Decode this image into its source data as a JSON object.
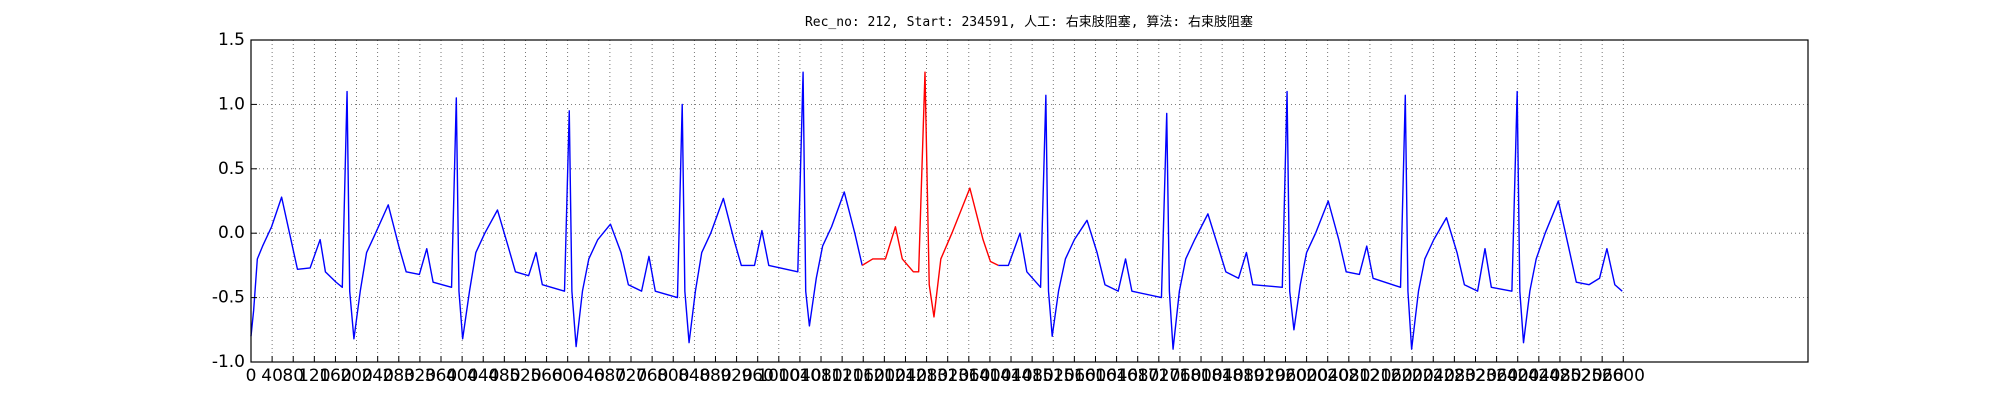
{
  "chart_data": {
    "type": "line",
    "title": "Rec_no: 212, Start: 234591, 人工: 右束肢阻塞, 算法: 右束肢阻塞",
    "xlim": [
      0,
      2950
    ],
    "ylim": [
      -1.0,
      1.5
    ],
    "xticks": [
      0,
      40,
      80,
      120,
      160,
      200,
      240,
      280,
      320,
      360,
      400,
      440,
      480,
      520,
      560,
      600,
      640,
      680,
      720,
      760,
      800,
      840,
      880,
      920,
      960,
      1000,
      1040,
      1080,
      1120,
      1160,
      1200,
      1240,
      1280,
      1320,
      1360,
      1400,
      1440,
      1480,
      1520,
      1560,
      1600,
      1640,
      1680,
      1720,
      1760,
      1800,
      1840,
      1880,
      1920,
      1960,
      2000,
      2040,
      2080,
      2120,
      2160,
      2200,
      2240,
      2280,
      2320,
      2360,
      2400,
      2440,
      2480,
      2520,
      2560,
      2600
    ],
    "yticks": [
      {
        "value": -1.0,
        "label": "-1.0"
      },
      {
        "value": -0.5,
        "label": "-0.5"
      },
      {
        "value": 0.0,
        "label": "0.0"
      },
      {
        "value": 0.5,
        "label": "0.5"
      },
      {
        "value": 1.0,
        "label": "1.0"
      },
      {
        "value": 1.5,
        "label": "1.5"
      }
    ],
    "grid": true,
    "series": [
      {
        "color": "#0000ff",
        "x": [
          0,
          5,
          12,
          22,
          39,
          58,
          73,
          88,
          112,
          131,
          141,
          161,
          173,
          182,
          187,
          195,
          207,
          219,
          236,
          260,
          280,
          294,
          319,
          333,
          345,
          380,
          389,
          394,
          401,
          414,
          426,
          443,
          467,
          487,
          501,
          526,
          540,
          552,
          594,
          603,
          608,
          616,
          628,
          640,
          657,
          681,
          701,
          715,
          740,
          754,
          766,
          808,
          817,
          822,
          830,
          842,
          854,
          871,
          895,
          915,
          929,
          954,
          968,
          981,
          1036,
          1046,
          1051,
          1058,
          1071,
          1083,
          1100,
          1124,
          1144,
          1158
        ],
        "values": [
          -0.8,
          -0.6,
          -0.2,
          -0.1,
          0.05,
          0.28,
          0.0,
          -0.28,
          -0.27,
          -0.05,
          -0.3,
          -0.38,
          -0.42,
          1.1,
          -0.45,
          -0.82,
          -0.45,
          -0.15,
          0.0,
          0.22,
          -0.1,
          -0.3,
          -0.32,
          -0.12,
          -0.38,
          -0.42,
          1.05,
          -0.45,
          -0.82,
          -0.45,
          -0.15,
          0.0,
          0.18,
          -0.1,
          -0.3,
          -0.33,
          -0.15,
          -0.4,
          -0.45,
          0.95,
          -0.45,
          -0.88,
          -0.45,
          -0.2,
          -0.05,
          0.07,
          -0.15,
          -0.4,
          -0.45,
          -0.18,
          -0.45,
          -0.5,
          1.0,
          -0.45,
          -0.85,
          -0.45,
          -0.15,
          0.0,
          0.27,
          -0.05,
          -0.25,
          -0.25,
          0.02,
          -0.25,
          -0.3,
          1.25,
          -0.45,
          -0.72,
          -0.35,
          -0.1,
          0.05,
          0.32,
          0.0,
          -0.25
        ]
      },
      {
        "color": "#ff0000",
        "x": [
          1158,
          1178,
          1202,
          1221,
          1234,
          1255,
          1265,
          1277,
          1285,
          1294,
          1307,
          1328,
          1362,
          1387,
          1401,
          1416
        ],
        "values": [
          -0.25,
          -0.2,
          -0.2,
          0.05,
          -0.2,
          -0.3,
          -0.3,
          1.25,
          -0.4,
          -0.65,
          -0.2,
          0.0,
          0.35,
          -0.05,
          -0.22,
          -0.25
        ]
      },
      {
        "color": "#0000ff",
        "x": [
          1416,
          1435,
          1457,
          1470,
          1496,
          1506,
          1511,
          1518,
          1530,
          1543,
          1560,
          1584,
          1603,
          1618,
          1643,
          1657,
          1669,
          1725,
          1735,
          1740,
          1747,
          1759,
          1771,
          1788,
          1813,
          1832,
          1847,
          1871,
          1886,
          1898,
          1954,
          1963,
          1968,
          1976,
          1988,
          2000,
          2017,
          2041,
          2061,
          2075,
          2100,
          2114,
          2126,
          2178,
          2187,
          2192,
          2199,
          2212,
          2224,
          2241,
          2265,
          2285,
          2299,
          2324,
          2338,
          2350,
          2389,
          2399,
          2404,
          2411,
          2423,
          2435,
          2452,
          2477,
          2496,
          2511,
          2535,
          2555,
          2569,
          2584,
          2598
        ],
        "values": [
          -0.25,
          -0.25,
          0.0,
          -0.3,
          -0.42,
          1.07,
          -0.45,
          -0.8,
          -0.45,
          -0.2,
          -0.05,
          0.1,
          -0.15,
          -0.4,
          -0.45,
          -0.2,
          -0.45,
          -0.5,
          0.93,
          -0.45,
          -0.9,
          -0.45,
          -0.2,
          -0.05,
          0.15,
          -0.1,
          -0.3,
          -0.35,
          -0.15,
          -0.4,
          -0.42,
          1.1,
          -0.45,
          -0.75,
          -0.4,
          -0.15,
          0.0,
          0.25,
          -0.05,
          -0.3,
          -0.32,
          -0.1,
          -0.35,
          -0.42,
          1.07,
          -0.45,
          -0.9,
          -0.45,
          -0.2,
          -0.05,
          0.12,
          -0.15,
          -0.4,
          -0.45,
          -0.12,
          -0.42,
          -0.45,
          1.1,
          -0.45,
          -0.85,
          -0.45,
          -0.2,
          0.0,
          0.25,
          -0.1,
          -0.38,
          -0.4,
          -0.35,
          -0.12,
          -0.4,
          -0.45
        ]
      }
    ]
  }
}
